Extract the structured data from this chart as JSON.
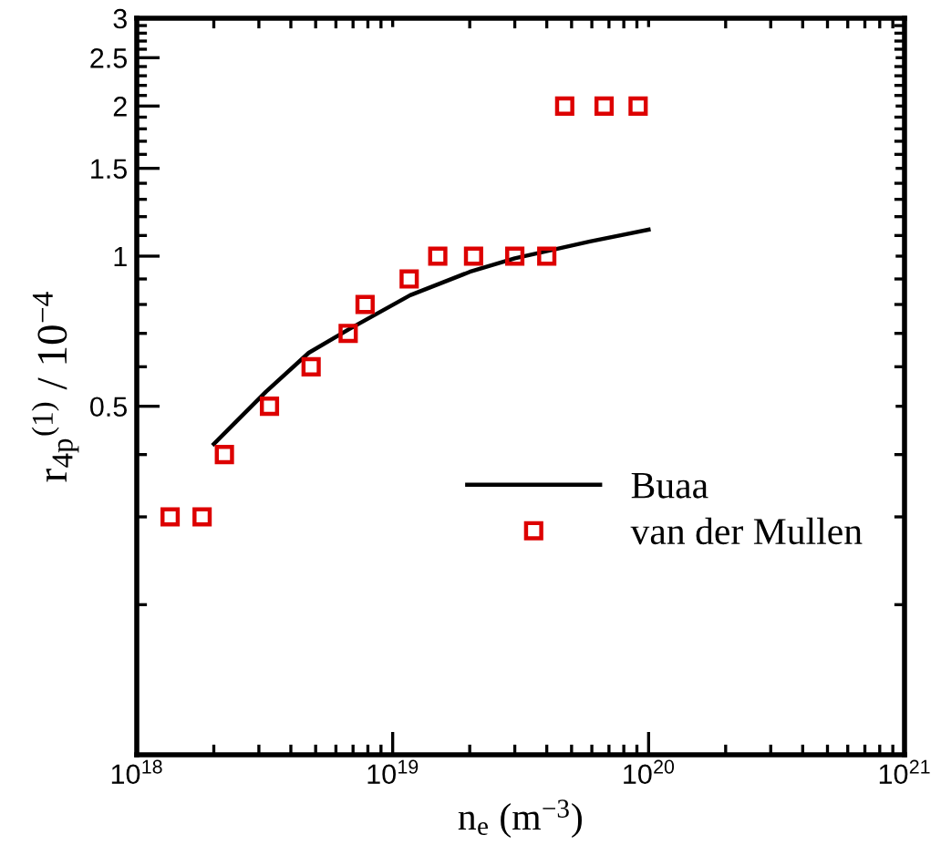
{
  "chart_data": {
    "type": "scatter",
    "xlabel": "n$_{e}$ (m$^{−3}$)",
    "ylabel": "r$_{4p}$$^{(1)}$ / 10$^{−4}$",
    "log": "xy",
    "legend": "right",
    "grid": false,
    "xlim": [
      1e+18,
      1e+21
    ],
    "xticks": [
      {
        "value": 1e+18,
        "label": "10$^{18}$"
      },
      {
        "value": 2e+18,
        "label": null
      },
      {
        "value": 3e+18,
        "label": null
      },
      {
        "value": 4e+18,
        "label": null
      },
      {
        "value": 5e+18,
        "label": null
      },
      {
        "value": 6e+18,
        "label": null
      },
      {
        "value": 7e+18,
        "label": null
      },
      {
        "value": 8e+18,
        "label": null
      },
      {
        "value": 9e+18,
        "label": null
      },
      {
        "value": 1e+19,
        "label": "10$^{19}$"
      },
      {
        "value": 2e+19,
        "label": null
      },
      {
        "value": 3e+19,
        "label": null
      },
      {
        "value": 4e+19,
        "label": null
      },
      {
        "value": 5e+19,
        "label": null
      },
      {
        "value": 6e+19,
        "label": null
      },
      {
        "value": 7e+19,
        "label": null
      },
      {
        "value": 8e+19,
        "label": null
      },
      {
        "value": 9e+19,
        "label": null
      },
      {
        "value": 1e+20,
        "label": "10$^{20}$"
      },
      {
        "value": 2e+20,
        "label": null
      },
      {
        "value": 3e+20,
        "label": null
      },
      {
        "value": 4e+20,
        "label": null
      },
      {
        "value": 5e+20,
        "label": null
      },
      {
        "value": 6e+20,
        "label": null
      },
      {
        "value": 7e+20,
        "label": null
      },
      {
        "value": 8e+20,
        "label": null
      },
      {
        "value": 9e+20,
        "label": null
      },
      {
        "value": 1e+21,
        "label": "10$^{21}$"
      }
    ],
    "ylim": [
      0.1,
      3
    ],
    "yticks": [
      {
        "value": 0.2,
        "label": null
      },
      {
        "value": 0.3,
        "label": null
      },
      {
        "value": 0.4,
        "label": null
      },
      0.5,
      {
        "value": 0.6,
        "label": null
      },
      {
        "value": 0.7,
        "label": null
      },
      {
        "value": 0.8,
        "label": null
      },
      {
        "value": 0.9,
        "label": null
      },
      1,
      {
        "value": 1.1,
        "label": null
      },
      {
        "value": 1.2,
        "label": null
      },
      {
        "value": 1.3,
        "label": null
      },
      {
        "value": 1.4,
        "label": null
      },
      1.5,
      {
        "value": 1.6,
        "label": null
      },
      {
        "value": 1.7,
        "label": null
      },
      {
        "value": 1.8,
        "label": null
      },
      {
        "value": 1.9,
        "label": null
      },
      2,
      {
        "value": 2.1,
        "label": null
      },
      {
        "value": 2.2,
        "label": null
      },
      {
        "value": 2.3,
        "label": null
      },
      {
        "value": 2.4,
        "label": null
      },
      2.5,
      {
        "value": 2.6,
        "label": null
      },
      {
        "value": 2.7,
        "label": null
      },
      {
        "value": 2.8,
        "label": null
      },
      {
        "value": 2.9,
        "label": null
      },
      3
    ],
    "series": [
      {
        "name": "Buaa",
        "type": "line",
        "color": "#000000",
        "line_style": "solid",
        "marker": "none",
        "x": [
          2e+18,
          3.2e+18,
          4.7e+18,
          6.8e+18,
          1.17e+19,
          2e+19,
          3e+19,
          5.9e+19,
          1e+20
        ],
        "values": [
          0.42,
          0.535,
          0.64,
          0.715,
          0.835,
          0.93,
          0.99,
          1.07,
          1.13
        ]
      },
      {
        "name": "van der Mullen",
        "color": "#dd0000",
        "marker": "square",
        "x": [
          1.35e+18,
          1.8e+18,
          2.2e+18,
          3.3e+18,
          4.8e+18,
          6.7e+18,
          7.8e+18,
          1.16e+19,
          1.5e+19,
          2.07e+19,
          3e+19,
          4e+19,
          4.7e+19,
          6.7e+19,
          9.1e+19
        ],
        "values": [
          0.3,
          0.3,
          0.4,
          0.5,
          0.6,
          0.7,
          0.8,
          0.9,
          1,
          1,
          1,
          1,
          2,
          2,
          2
        ]
      }
    ]
  }
}
